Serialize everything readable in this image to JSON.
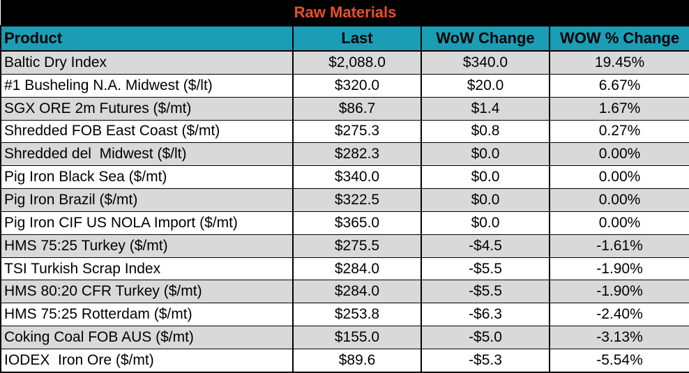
{
  "title": "Raw Materials",
  "columns": [
    "Product",
    "Last",
    "WoW Change",
    "WOW % Change"
  ],
  "rows": [
    {
      "product": "Baltic Dry Index",
      "last": "$2,088.0",
      "wow": "$340.0",
      "pct": "19.45%"
    },
    {
      "product": "#1 Busheling N.A. Midwest ($/lt)",
      "last": "$320.0",
      "wow": "$20.0",
      "pct": "6.67%"
    },
    {
      "product": "SGX ORE 2m Futures ($/mt)",
      "last": "$86.7",
      "wow": "$1.4",
      "pct": "1.67%"
    },
    {
      "product": "Shredded FOB East Coast ($/mt)",
      "last": "$275.3",
      "wow": "$0.8",
      "pct": "0.27%"
    },
    {
      "product": "Shredded del  Midwest ($/lt)",
      "last": "$282.3",
      "wow": "$0.0",
      "pct": "0.00%"
    },
    {
      "product": "Pig Iron Black Sea ($/mt)",
      "last": "$340.0",
      "wow": "$0.0",
      "pct": "0.00%"
    },
    {
      "product": "Pig Iron Brazil ($/mt)",
      "last": "$322.5",
      "wow": "$0.0",
      "pct": "0.00%"
    },
    {
      "product": "Pig Iron CIF US NOLA Import ($/mt)",
      "last": "$365.0",
      "wow": "$0.0",
      "pct": "0.00%"
    },
    {
      "product": "HMS 75:25 Turkey ($/mt)",
      "last": "$275.5",
      "wow": "-$4.5",
      "pct": "-1.61%"
    },
    {
      "product": "TSI Turkish Scrap Index",
      "last": "$284.0",
      "wow": "-$5.5",
      "pct": "-1.90%"
    },
    {
      "product": "HMS 80:20 CFR Turkey ($/mt)",
      "last": "$284.0",
      "wow": "-$5.5",
      "pct": "-1.90%"
    },
    {
      "product": "HMS 75:25 Rotterdam ($/mt)",
      "last": "$253.8",
      "wow": "-$6.3",
      "pct": "-2.40%"
    },
    {
      "product": "Coking Coal FOB AUS ($/mt)",
      "last": "$155.0",
      "wow": "-$5.0",
      "pct": "-3.13%"
    },
    {
      "product": "IODEX  Iron Ore ($/mt)",
      "last": "$89.6",
      "wow": "-$5.3",
      "pct": "-5.54%"
    }
  ],
  "colors": {
    "title_bg": "#000000",
    "title_text": "#e8502a",
    "header_bg": "#1a9db5",
    "row_alt_bg": "#d9d9d9",
    "row_bg": "#ffffff"
  }
}
